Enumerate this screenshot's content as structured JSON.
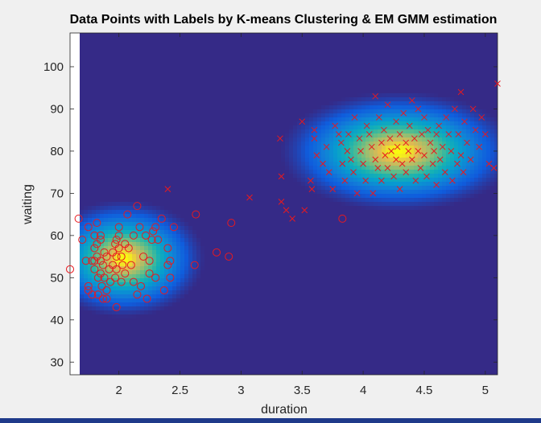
{
  "chart_data": {
    "type": "scatter",
    "title": "Data Points with Labels by K-means Clustering & EM GMM estimation",
    "xlabel": "duration",
    "ylabel": "waiting",
    "xlim": [
      1.6,
      5.1
    ],
    "ylim": [
      27,
      108
    ],
    "x_ticks": [
      "2",
      "2.5",
      "3",
      "3.5",
      "4",
      "4.5",
      "5"
    ],
    "y_ticks": [
      "30",
      "40",
      "50",
      "60",
      "70",
      "80",
      "90",
      "100"
    ],
    "x_tick_values": [
      2,
      2.5,
      3,
      3.5,
      4,
      4.5,
      5
    ],
    "y_tick_values": [
      30,
      40,
      50,
      60,
      70,
      80,
      90,
      100
    ],
    "grid": false,
    "background_color": "#352a87",
    "marker_color": "#e8191f",
    "density_components": [
      {
        "mean": [
          2.04,
          54.5
        ],
        "sd": [
          0.28,
          5.9
        ],
        "weight": 0.36
      },
      {
        "mean": [
          4.29,
          79.9
        ],
        "sd": [
          0.41,
          6.0
        ],
        "weight": 0.64
      }
    ],
    "series": [
      {
        "marker": "circle",
        "points": [
          [
            1.6,
            52
          ],
          [
            1.67,
            64
          ],
          [
            1.7,
            59
          ],
          [
            1.73,
            54
          ],
          [
            1.75,
            62
          ],
          [
            1.75,
            48
          ],
          [
            1.75,
            47
          ],
          [
            1.78,
            54
          ],
          [
            1.78,
            46
          ],
          [
            1.8,
            60
          ],
          [
            1.8,
            57
          ],
          [
            1.8,
            54
          ],
          [
            1.8,
            52
          ],
          [
            1.82,
            63
          ],
          [
            1.82,
            58
          ],
          [
            1.82,
            55
          ],
          [
            1.83,
            50
          ],
          [
            1.83,
            46
          ],
          [
            1.85,
            60
          ],
          [
            1.85,
            59
          ],
          [
            1.85,
            54
          ],
          [
            1.85,
            51
          ],
          [
            1.86,
            48
          ],
          [
            1.87,
            45
          ],
          [
            1.87,
            53
          ],
          [
            1.88,
            56
          ],
          [
            1.88,
            50
          ],
          [
            1.9,
            55
          ],
          [
            1.9,
            47
          ],
          [
            1.9,
            45
          ],
          [
            1.92,
            52
          ],
          [
            1.93,
            49
          ],
          [
            1.95,
            56
          ],
          [
            1.95,
            53
          ],
          [
            1.97,
            58
          ],
          [
            1.97,
            50
          ],
          [
            1.98,
            59
          ],
          [
            1.98,
            55
          ],
          [
            1.98,
            52
          ],
          [
            1.98,
            43
          ],
          [
            2.0,
            62
          ],
          [
            2.0,
            60
          ],
          [
            2.0,
            57
          ],
          [
            2.02,
            55
          ],
          [
            2.02,
            49
          ],
          [
            2.03,
            53
          ],
          [
            2.05,
            58
          ],
          [
            2.05,
            51
          ],
          [
            2.07,
            65
          ],
          [
            2.08,
            57
          ],
          [
            2.1,
            53
          ],
          [
            2.12,
            49
          ],
          [
            2.12,
            60
          ],
          [
            2.15,
            67
          ],
          [
            2.15,
            46
          ],
          [
            2.17,
            62
          ],
          [
            2.18,
            48
          ],
          [
            2.2,
            55
          ],
          [
            2.22,
            60
          ],
          [
            2.23,
            45
          ],
          [
            2.25,
            54
          ],
          [
            2.25,
            51
          ],
          [
            2.27,
            59
          ],
          [
            2.28,
            61
          ],
          [
            2.3,
            62
          ],
          [
            2.3,
            50
          ],
          [
            2.32,
            59
          ],
          [
            2.35,
            64
          ],
          [
            2.37,
            47
          ],
          [
            2.4,
            53
          ],
          [
            2.4,
            57
          ],
          [
            2.42,
            54
          ],
          [
            2.42,
            50
          ],
          [
            2.45,
            62
          ],
          [
            2.62,
            53
          ],
          [
            2.63,
            65
          ],
          [
            2.8,
            56
          ],
          [
            2.9,
            55
          ],
          [
            2.92,
            63
          ],
          [
            3.83,
            64
          ]
        ]
      },
      {
        "marker": "cross",
        "points": [
          [
            2.4,
            71
          ],
          [
            3.07,
            69
          ],
          [
            3.32,
            83
          ],
          [
            3.33,
            74
          ],
          [
            3.33,
            68
          ],
          [
            3.37,
            66
          ],
          [
            3.42,
            64
          ],
          [
            3.5,
            87
          ],
          [
            3.52,
            66
          ],
          [
            3.57,
            73
          ],
          [
            3.58,
            71
          ],
          [
            3.6,
            85
          ],
          [
            3.6,
            83
          ],
          [
            3.62,
            79
          ],
          [
            3.67,
            77
          ],
          [
            3.7,
            81
          ],
          [
            3.72,
            75
          ],
          [
            3.75,
            71
          ],
          [
            3.77,
            86
          ],
          [
            3.8,
            84
          ],
          [
            3.82,
            82
          ],
          [
            3.83,
            77
          ],
          [
            3.85,
            73
          ],
          [
            3.87,
            80
          ],
          [
            3.88,
            84
          ],
          [
            3.9,
            78
          ],
          [
            3.92,
            75
          ],
          [
            3.93,
            88
          ],
          [
            3.95,
            70
          ],
          [
            3.97,
            83
          ],
          [
            3.98,
            80
          ],
          [
            4.0,
            77
          ],
          [
            4.02,
            73
          ],
          [
            4.03,
            86
          ],
          [
            4.05,
            84
          ],
          [
            4.07,
            81
          ],
          [
            4.08,
            70
          ],
          [
            4.1,
            93
          ],
          [
            4.1,
            78
          ],
          [
            4.12,
            76
          ],
          [
            4.13,
            88
          ],
          [
            4.15,
            82
          ],
          [
            4.15,
            73
          ],
          [
            4.17,
            85
          ],
          [
            4.18,
            79
          ],
          [
            4.2,
            91
          ],
          [
            4.2,
            76
          ],
          [
            4.22,
            83
          ],
          [
            4.23,
            80
          ],
          [
            4.25,
            74
          ],
          [
            4.27,
            87
          ],
          [
            4.27,
            78
          ],
          [
            4.28,
            81
          ],
          [
            4.3,
            84
          ],
          [
            4.3,
            71
          ],
          [
            4.32,
            77
          ],
          [
            4.33,
            89
          ],
          [
            4.35,
            82
          ],
          [
            4.35,
            75
          ],
          [
            4.37,
            80
          ],
          [
            4.38,
            86
          ],
          [
            4.4,
            92
          ],
          [
            4.4,
            78
          ],
          [
            4.42,
            83
          ],
          [
            4.43,
            73
          ],
          [
            4.45,
            90
          ],
          [
            4.45,
            80
          ],
          [
            4.47,
            76
          ],
          [
            4.48,
            84
          ],
          [
            4.5,
            88
          ],
          [
            4.5,
            79
          ],
          [
            4.52,
            74
          ],
          [
            4.53,
            85
          ],
          [
            4.55,
            82
          ],
          [
            4.57,
            77
          ],
          [
            4.58,
            80
          ],
          [
            4.6,
            84
          ],
          [
            4.6,
            72
          ],
          [
            4.62,
            86
          ],
          [
            4.63,
            78
          ],
          [
            4.65,
            81
          ],
          [
            4.67,
            75
          ],
          [
            4.68,
            88
          ],
          [
            4.7,
            84
          ],
          [
            4.72,
            80
          ],
          [
            4.73,
            73
          ],
          [
            4.75,
            90
          ],
          [
            4.77,
            77
          ],
          [
            4.78,
            84
          ],
          [
            4.8,
            94
          ],
          [
            4.8,
            79
          ],
          [
            4.82,
            75
          ],
          [
            4.83,
            87
          ],
          [
            4.85,
            82
          ],
          [
            4.88,
            78
          ],
          [
            4.9,
            90
          ],
          [
            4.92,
            85
          ],
          [
            4.95,
            81
          ],
          [
            4.97,
            88
          ],
          [
            5.0,
            84
          ],
          [
            5.03,
            77
          ],
          [
            5.07,
            76
          ],
          [
            5.1,
            96
          ]
        ]
      }
    ]
  }
}
